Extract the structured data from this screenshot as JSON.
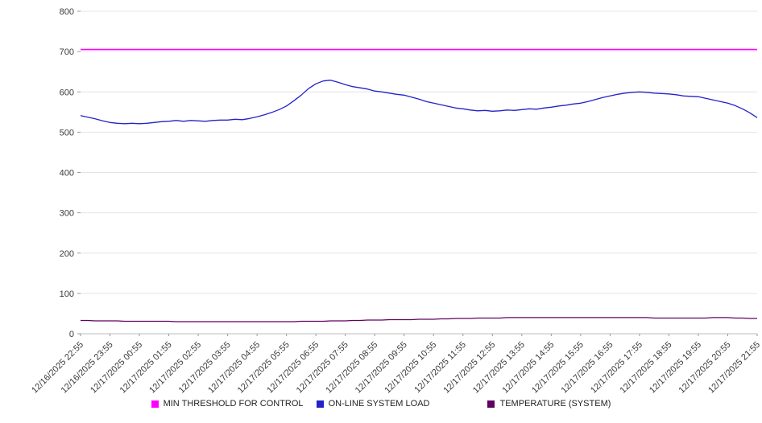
{
  "chart_data": {
    "type": "line",
    "title": "",
    "xlabel": "",
    "ylabel": "",
    "ylim": [
      0,
      800
    ],
    "yticks": [
      0,
      100,
      200,
      300,
      400,
      500,
      600,
      700,
      800
    ],
    "grid": "horizontal",
    "legend_position": "bottom",
    "points_per_category": 4,
    "categories": [
      "12/16/2025 22:55",
      "12/16/2025 23:55",
      "12/17/2025 00:55",
      "12/17/2025 01:55",
      "12/17/2025 02:55",
      "12/17/2025 03:55",
      "12/17/2025 04:55",
      "12/17/2025 05:55",
      "12/17/2025 06:55",
      "12/17/2025 07:55",
      "12/17/2025 08:55",
      "12/17/2025 09:55",
      "12/17/2025 10:55",
      "12/17/2025 11:55",
      "12/17/2025 12:55",
      "12/17/2025 13:55",
      "12/17/2025 14:55",
      "12/17/2025 15:55",
      "12/17/2025 16:55",
      "12/17/2025 17:55",
      "12/17/2025 18:55",
      "12/17/2025 19:55",
      "12/17/2025 20:55",
      "12/17/2025 21:55"
    ],
    "series": [
      {
        "name": "MIN THRESHOLD FOR CONTROL",
        "color": "#ff00ff",
        "type": "constant",
        "value": 705,
        "width": 1.6
      },
      {
        "name": "ON-LINE SYSTEM LOAD",
        "color": "#2323c8",
        "width": 1.3,
        "values": [
          541,
          537,
          533,
          528,
          524,
          522,
          521,
          522,
          521,
          522,
          524,
          526,
          527,
          529,
          527,
          529,
          528,
          527,
          529,
          530,
          530,
          532,
          531,
          534,
          538,
          543,
          549,
          556,
          565,
          578,
          592,
          608,
          620,
          627,
          629,
          624,
          618,
          613,
          610,
          607,
          602,
          600,
          597,
          594,
          592,
          587,
          582,
          576,
          572,
          568,
          564,
          560,
          558,
          555,
          553,
          554,
          552,
          553,
          555,
          554,
          556,
          558,
          557,
          560,
          562,
          565,
          567,
          570,
          572,
          576,
          581,
          586,
          590,
          594,
          597,
          599,
          600,
          599,
          597,
          596,
          595,
          593,
          590,
          589,
          588,
          584,
          580,
          576,
          572,
          566,
          558,
          548,
          536
        ]
      },
      {
        "name": "TEMPERATURE (SYSTEM)",
        "color": "#600060",
        "width": 1.3,
        "values": [
          33,
          33,
          32,
          32,
          32,
          32,
          31,
          31,
          31,
          31,
          31,
          31,
          31,
          30,
          30,
          30,
          30,
          30,
          30,
          30,
          30,
          30,
          30,
          30,
          30,
          30,
          30,
          30,
          30,
          30,
          31,
          31,
          31,
          31,
          32,
          32,
          32,
          33,
          33,
          34,
          34,
          34,
          35,
          35,
          35,
          35,
          36,
          36,
          36,
          37,
          37,
          38,
          38,
          38,
          39,
          39,
          39,
          39,
          40,
          40,
          40,
          40,
          40,
          40,
          40,
          40,
          40,
          40,
          40,
          40,
          40,
          40,
          40,
          40,
          40,
          40,
          40,
          40,
          39,
          39,
          39,
          39,
          39,
          39,
          39,
          39,
          40,
          40,
          40,
          39,
          39,
          38,
          38
        ]
      }
    ]
  }
}
